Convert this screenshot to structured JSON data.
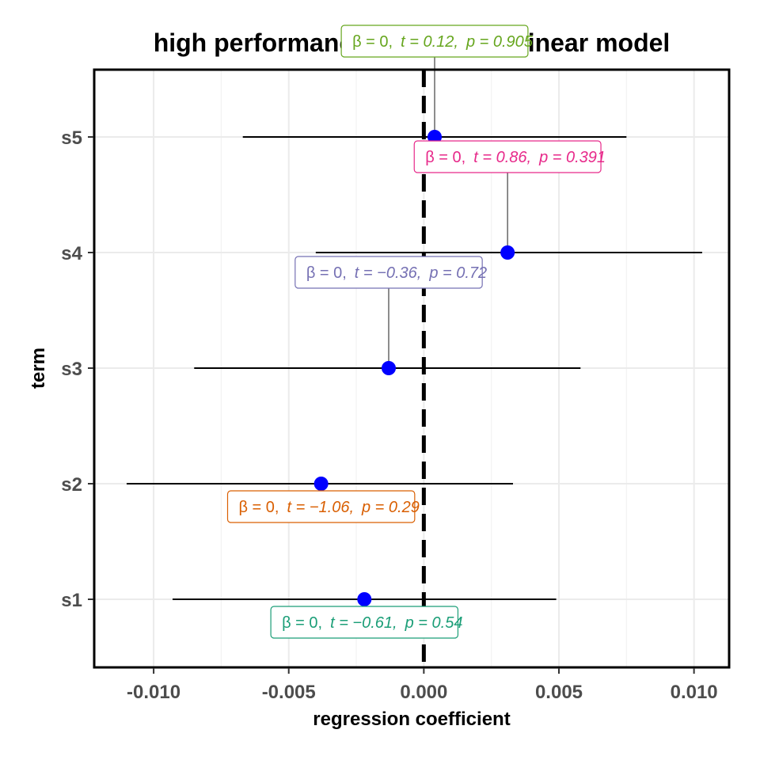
{
  "chart_data": {
    "type": "scatter",
    "title": "high performance generalized linear model",
    "xlabel": "regression coefficient",
    "ylabel": "term",
    "xlim": [
      -0.0122,
      0.0113
    ],
    "x_ticks": [
      -0.01,
      -0.005,
      0.0,
      0.005,
      0.01
    ],
    "x_tick_labels": [
      "-0.010",
      "-0.005",
      "0.000",
      "0.005",
      "0.010"
    ],
    "y_categories": [
      "s1",
      "s2",
      "s3",
      "s4",
      "s5"
    ],
    "grid": true,
    "reference_line": {
      "x": 0,
      "style": "dashed"
    },
    "point_color": "#0000ff",
    "terms": [
      {
        "term": "s1",
        "estimate": -0.0022,
        "conf_low": -0.0093,
        "conf_high": 0.0049,
        "label": {
          "beta": "β = 0,",
          "t": "t = −0.61,",
          "p": "p = 0.54"
        },
        "label_color": "#1b9e77",
        "label_position": "below"
      },
      {
        "term": "s2",
        "estimate": -0.0038,
        "conf_low": -0.011,
        "conf_high": 0.0033,
        "label": {
          "beta": "β = 0,",
          "t": "t = −1.06,",
          "p": "p = 0.29"
        },
        "label_color": "#d95f02",
        "label_position": "below"
      },
      {
        "term": "s3",
        "estimate": -0.0013,
        "conf_low": -0.0085,
        "conf_high": 0.0058,
        "label": {
          "beta": "β = 0,",
          "t": "t = −0.36,",
          "p": "p = 0.72"
        },
        "label_color": "#7570b3",
        "label_position": "above"
      },
      {
        "term": "s4",
        "estimate": 0.0031,
        "conf_low": -0.004,
        "conf_high": 0.0103,
        "label": {
          "beta": "β = 0,",
          "t": "t = 0.86,",
          "p": "p = 0.391"
        },
        "label_color": "#e7298a",
        "label_position": "above"
      },
      {
        "term": "s5",
        "estimate": 0.0004,
        "conf_low": -0.0067,
        "conf_high": 0.0075,
        "label": {
          "beta": "β = 0,",
          "t": "t = 0.12,",
          "p": "p = 0.905"
        },
        "label_color": "#66a61e",
        "label_position": "above"
      }
    ]
  }
}
